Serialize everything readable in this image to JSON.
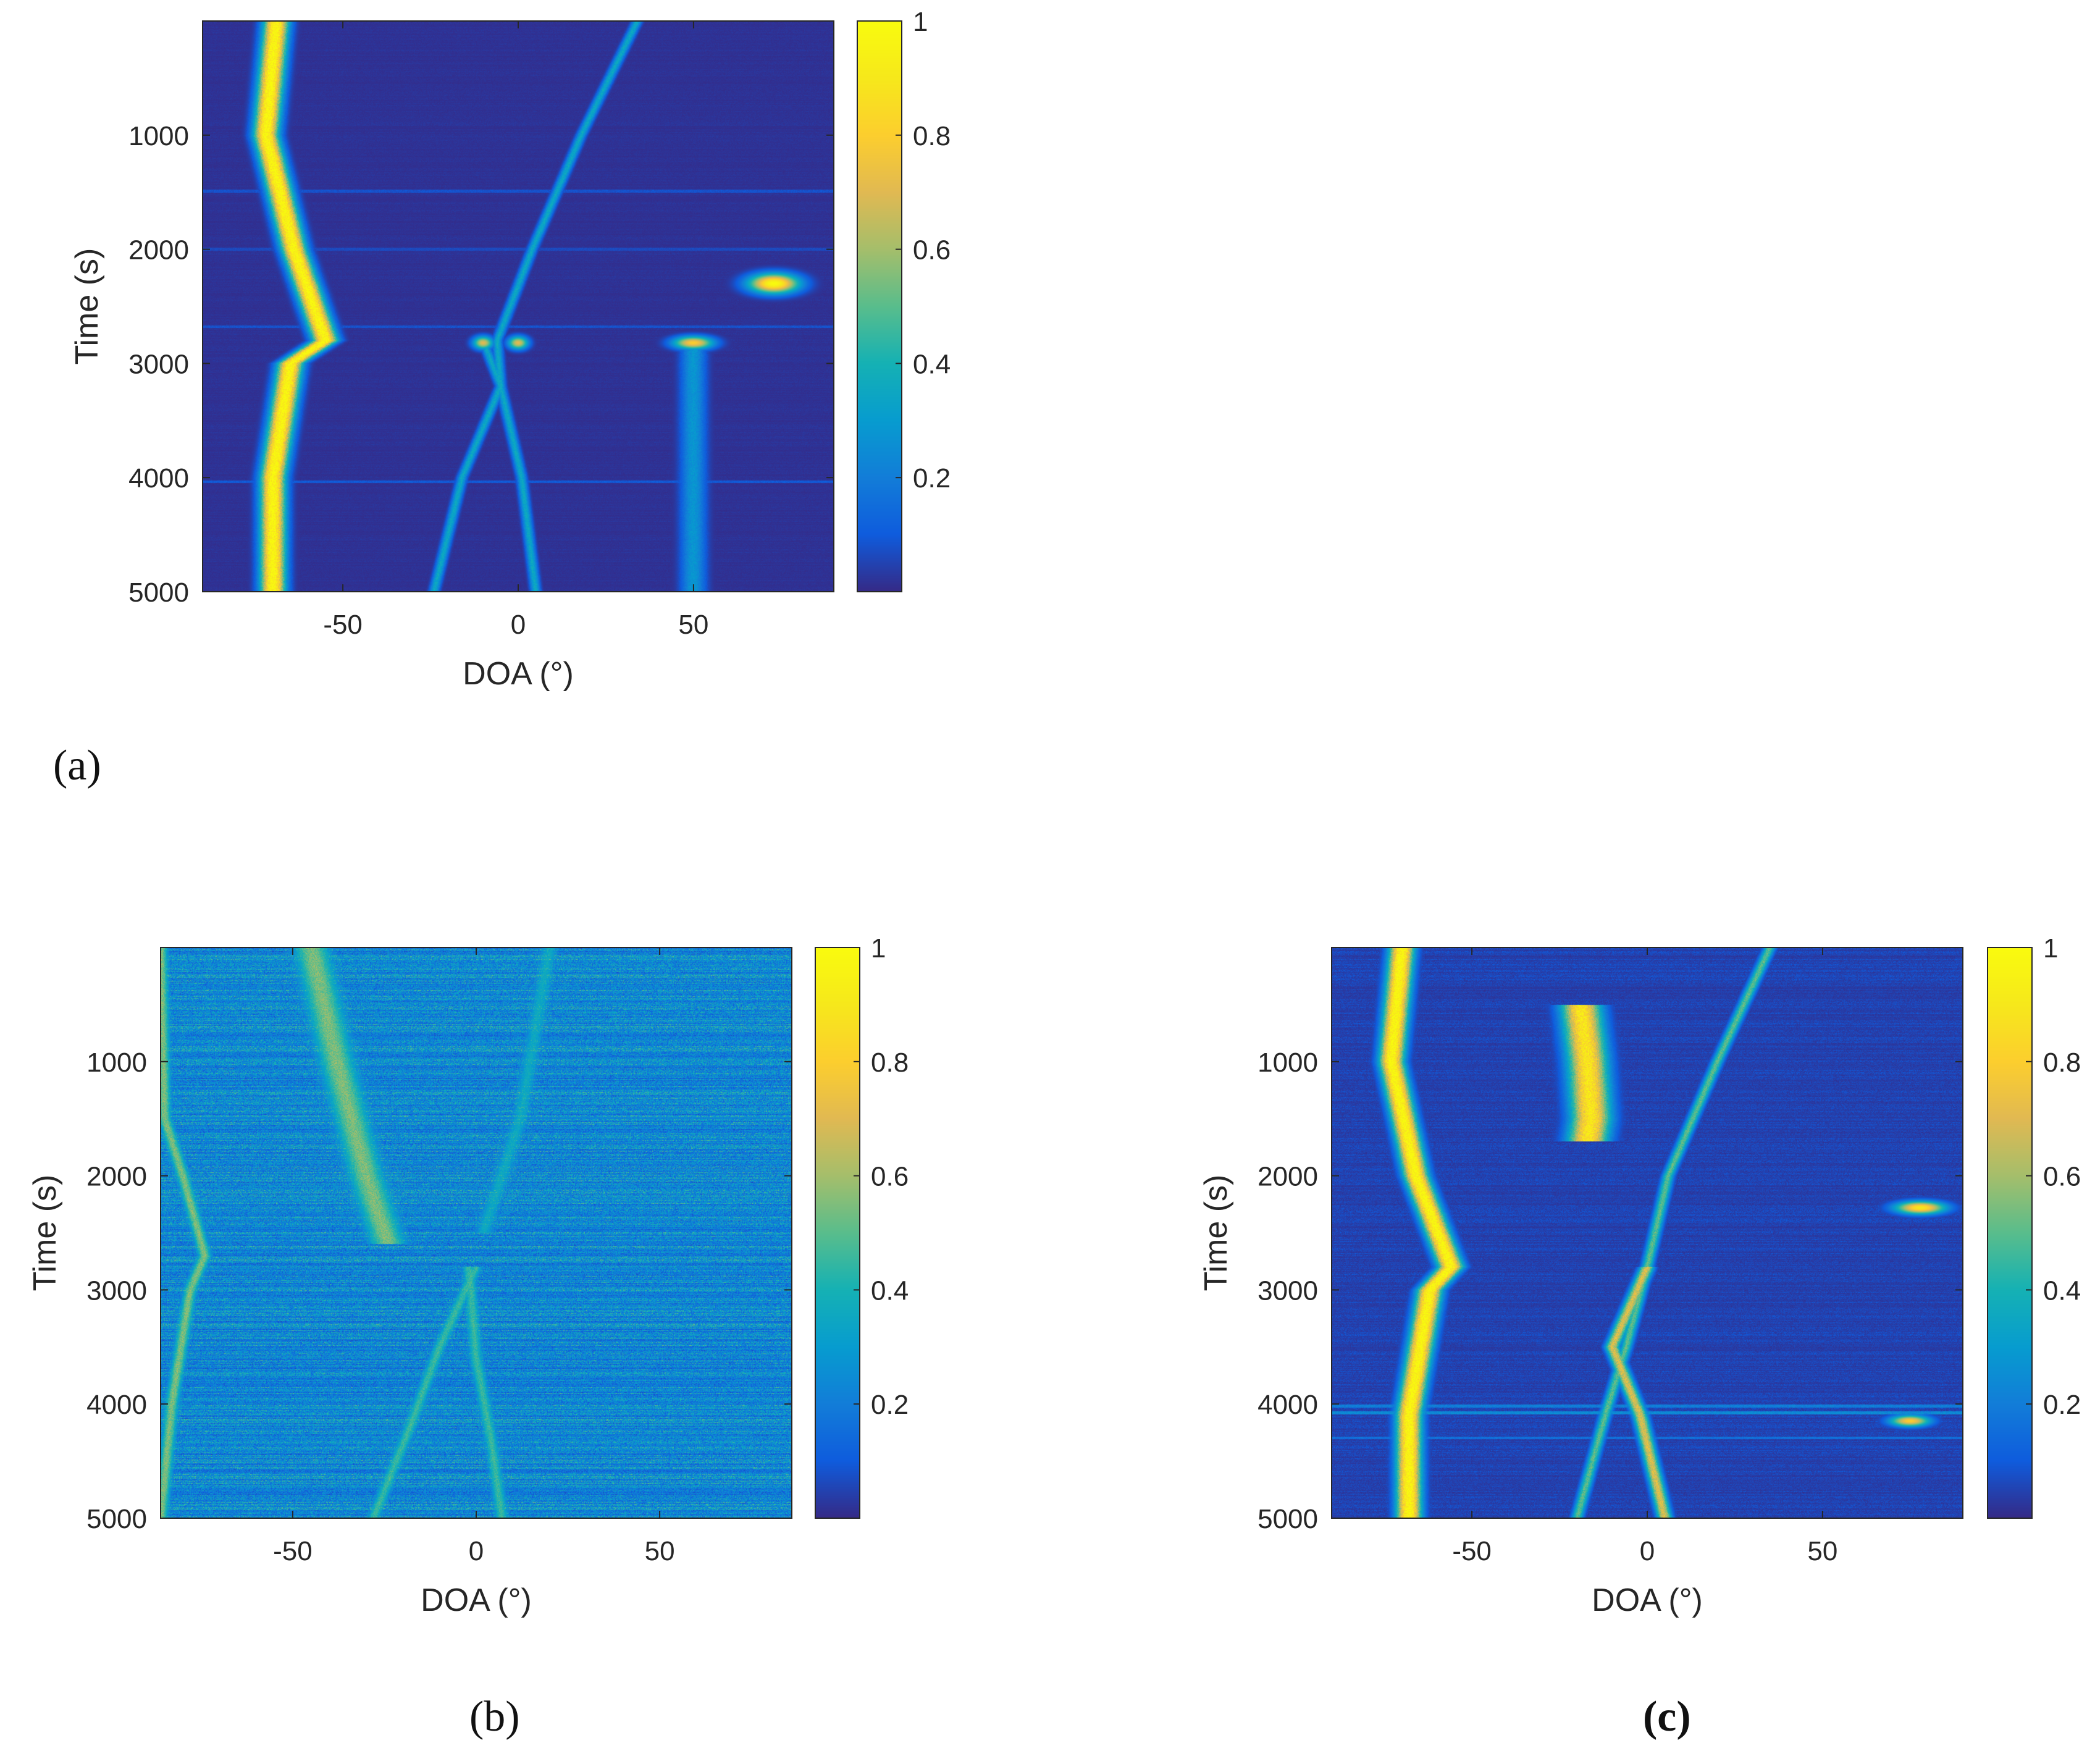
{
  "colors": {
    "colormap": "parula",
    "frame": "#262626",
    "background": "#ffffff"
  },
  "panel_labels": {
    "a": "(a)",
    "b": "(b)",
    "c": "(c)"
  },
  "chart_data": [
    {
      "id": "a",
      "type": "heatmap",
      "title": "",
      "xlabel": "DOA (°)",
      "ylabel": "Time (s)",
      "xlim": [
        -90,
        90
      ],
      "ylim": [
        0,
        5000
      ],
      "y_reversed": true,
      "xticks": [
        -50,
        0,
        50
      ],
      "yticks": [
        1000,
        2000,
        3000,
        4000,
        5000
      ],
      "colorbar": {
        "min": 0,
        "max": 1,
        "ticks": [
          0.2,
          0.4,
          0.6,
          0.8,
          1
        ]
      },
      "noise_level": 0.02,
      "tracks": [
        {
          "points": [
            [
              0,
              -69
            ],
            [
              1000,
              -72
            ],
            [
              2000,
              -64
            ],
            [
              2800,
              -55
            ],
            [
              3000,
              -65
            ],
            [
              4000,
              -70
            ],
            [
              5000,
              -70
            ]
          ],
          "peak": 1.0,
          "width_deg": 2.5
        },
        {
          "points": [
            [
              0,
              34
            ],
            [
              1000,
              18
            ],
            [
              2000,
              4
            ],
            [
              2800,
              -6
            ],
            [
              3200,
              -5
            ],
            [
              4000,
              -16
            ],
            [
              5000,
              -24
            ]
          ],
          "peak": 0.35,
          "width_deg": 1.0
        },
        {
          "points": [
            [
              2800,
              -10
            ],
            [
              3200,
              -5
            ],
            [
              4000,
              1
            ],
            [
              5000,
              5
            ]
          ],
          "peak": 0.35,
          "width_deg": 1.0
        },
        {
          "points": [
            [
              2800,
              50
            ],
            [
              5000,
              50
            ]
          ],
          "peak": 0.28,
          "width_deg": 2.5
        }
      ],
      "blobs": [
        {
          "t": 2300,
          "doa": 73,
          "dt": 60,
          "ddoa": 5,
          "value": 1.0
        },
        {
          "t": 2820,
          "doa": 50,
          "dt": 40,
          "ddoa": 4,
          "value": 0.8
        },
        {
          "t": 2820,
          "doa": -10,
          "dt": 40,
          "ddoa": 2,
          "value": 0.7
        },
        {
          "t": 2820,
          "doa": 0,
          "dt": 40,
          "ddoa": 2,
          "value": 0.7
        }
      ],
      "stripes": [
        {
          "t": 1490,
          "value": 0.1
        },
        {
          "t": 2000,
          "value": 0.08
        },
        {
          "t": 2680,
          "value": 0.1
        },
        {
          "t": 4040,
          "value": 0.12
        }
      ]
    },
    {
      "id": "b",
      "type": "heatmap",
      "title": "",
      "xlabel": "DOA (°)",
      "ylabel": "Time (s)",
      "xlim": [
        -86,
        86
      ],
      "ylim": [
        0,
        5000
      ],
      "y_reversed": true,
      "xticks": [
        -50,
        0,
        50
      ],
      "yticks": [
        1000,
        2000,
        3000,
        4000,
        5000
      ],
      "colorbar": {
        "min": 0,
        "max": 1,
        "ticks": [
          0.2,
          0.4,
          0.6,
          0.8,
          1
        ]
      },
      "noise_level": 0.3,
      "tracks": [
        {
          "points": [
            [
              0,
              -86
            ],
            [
              1500,
              -85
            ],
            [
              2000,
              -80
            ],
            [
              2700,
              -74
            ],
            [
              3000,
              -78
            ],
            [
              4000,
              -83
            ],
            [
              5000,
              -86
            ]
          ],
          "peak": 0.55,
          "width_deg": 1.5
        },
        {
          "points": [
            [
              0,
              -45
            ],
            [
              1000,
              -38
            ],
            [
              2000,
              -30
            ],
            [
              2600,
              -24
            ]
          ],
          "peak": 0.55,
          "width_deg": 4.0
        },
        {
          "points": [
            [
              2800,
              0
            ],
            [
              3500,
              -10
            ],
            [
              4200,
              -18
            ],
            [
              5000,
              -28
            ]
          ],
          "peak": 0.45,
          "width_deg": 1.5
        },
        {
          "points": [
            [
              2800,
              -2
            ],
            [
              3600,
              0
            ],
            [
              4300,
              4
            ],
            [
              5000,
              7
            ]
          ],
          "peak": 0.45,
          "width_deg": 1.5
        },
        {
          "points": [
            [
              0,
              20
            ],
            [
              1500,
              12
            ],
            [
              2500,
              2
            ]
          ],
          "peak": 0.35,
          "width_deg": 2.0
        }
      ],
      "blobs": [],
      "stripes": [
        {
          "t": 1490,
          "value": 0.25
        },
        {
          "t": 4040,
          "value": 0.25
        }
      ]
    },
    {
      "id": "c",
      "type": "heatmap",
      "title": "",
      "xlabel": "DOA (°)",
      "ylabel": "Time (s)",
      "xlim": [
        -90,
        90
      ],
      "ylim": [
        0,
        5000
      ],
      "y_reversed": true,
      "xticks": [
        -50,
        0,
        50
      ],
      "yticks": [
        1000,
        2000,
        3000,
        4000,
        5000
      ],
      "colorbar": {
        "min": 0,
        "max": 1,
        "ticks": [
          0.2,
          0.4,
          0.6,
          0.8,
          1
        ]
      },
      "noise_level": 0.06,
      "tracks": [
        {
          "points": [
            [
              0,
              -70
            ],
            [
              1000,
              -73
            ],
            [
              2000,
              -66
            ],
            [
              2800,
              -56
            ],
            [
              3000,
              -62
            ],
            [
              4100,
              -68
            ],
            [
              5000,
              -68
            ]
          ],
          "peak": 1.0,
          "width_deg": 2.5
        },
        {
          "points": [
            [
              500,
              -19
            ],
            [
              1000,
              -17
            ],
            [
              1500,
              -16
            ],
            [
              1700,
              -17
            ]
          ],
          "peak": 0.9,
          "width_deg": 4.0
        },
        {
          "points": [
            [
              0,
              35
            ],
            [
              1000,
              20
            ],
            [
              2000,
              6
            ],
            [
              2800,
              0
            ],
            [
              3500,
              -6
            ],
            [
              4100,
              -12
            ],
            [
              5000,
              -20
            ]
          ],
          "peak": 0.5,
          "width_deg": 1.2
        },
        {
          "points": [
            [
              2800,
              0
            ],
            [
              3500,
              -10
            ],
            [
              4100,
              -2
            ],
            [
              5000,
              5
            ]
          ],
          "peak": 0.7,
          "width_deg": 1.5
        }
      ],
      "blobs": [
        {
          "t": 2280,
          "doa": 78,
          "dt": 40,
          "ddoa": 5,
          "value": 0.9
        },
        {
          "t": 4150,
          "doa": 75,
          "dt": 35,
          "ddoa": 4,
          "value": 0.8
        }
      ],
      "stripes": [
        {
          "t": 4020,
          "value": 0.25
        },
        {
          "t": 4080,
          "value": 0.3
        },
        {
          "t": 4300,
          "value": 0.2
        }
      ]
    }
  ]
}
